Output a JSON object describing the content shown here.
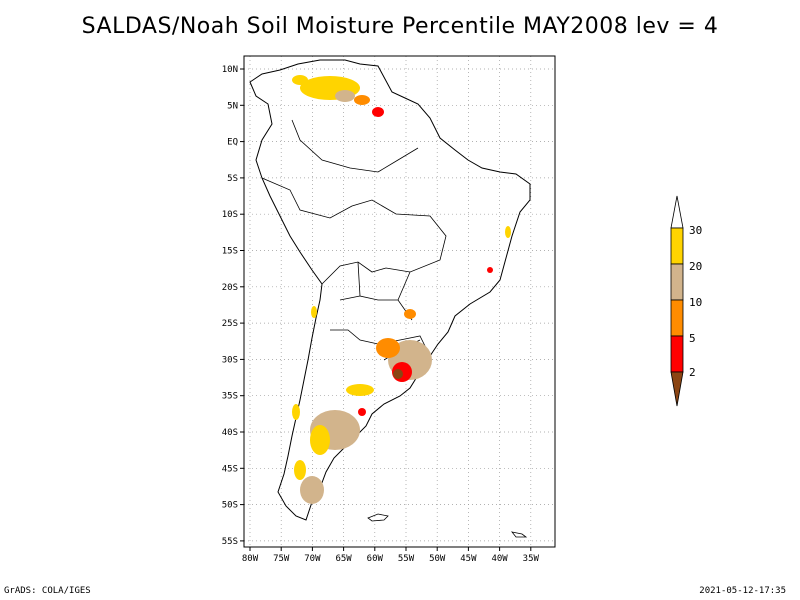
{
  "title": "SALDAS/Noah Soil Moisture Percentile MAY2008 lev = 4",
  "map": {
    "lat_labels": [
      "10N",
      "5N",
      "EQ",
      "5S",
      "10S",
      "15S",
      "20S",
      "25S",
      "30S",
      "35S",
      "40S",
      "45S",
      "50S",
      "55S"
    ],
    "lon_labels": [
      "80W",
      "75W",
      "70W",
      "65W",
      "60W",
      "55W",
      "50W",
      "45W",
      "40W",
      "35W"
    ],
    "grid": "dotted",
    "region": "South America"
  },
  "colorbar": {
    "labels": [
      "30",
      "20",
      "10",
      "5",
      "2"
    ],
    "colors": {
      "above_30": "#ffffff",
      "20_30": "#ffd400",
      "10_20": "#d2b48c",
      "5_10": "#ff8c00",
      "2_5": "#ff0000",
      "below_2": "#8b4513"
    }
  },
  "footer": {
    "left": "GrADS: COLA/IGES",
    "right": "2021-05-12-17:35"
  }
}
